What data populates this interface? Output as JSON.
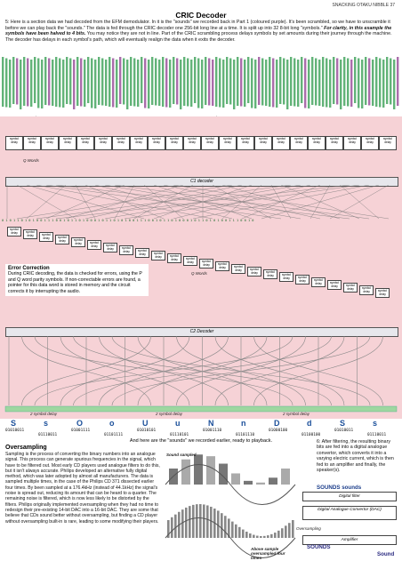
{
  "header": {
    "magazine": "SNACKING OTAKU NIBBLE 37",
    "title": "CRIC Decoder"
  },
  "intro": {
    "text": "5: Here is a section data we had decoded from the EFM demodulator. In it is the \"sounds\" we recorded back in Part 1 (coloured purple). It's been scrambled, so we have to unscramble it before we can play back the \"sounds.\" The data is fed through the CRIC decoder one 256-bit long line at a time. It is split up into 32 8-bit long \"symbols.\"",
    "emphasis": "For clarity, in this example the symbols have been halved to 4 bits.",
    "text_end": "You may notice they are not in line. Part of the CRIC scrambling process delays symbols by set amounts during their journey through the machine. The decoder has delays in each symbol's path, which will eventually realign the data when it exits the decoder."
  },
  "labels": {
    "p_words": "P Words",
    "q_words": "Q Words",
    "inverted": "(inverted)",
    "q_words_short": "Q Words",
    "c1_decoder": "C1 decoder",
    "c2_decoder": "C2 Decoder",
    "two_symbol_delay": "2 symbol delay",
    "delay_box": "symbol delay"
  },
  "bits": {
    "row_top": "0 1 0 1 0 1 0 1 0 1 0 1 0 1 0 1 0 1 0 1 0 1 0 1 0 1 0 1 0 1 0 1 0 1 0 1 0 1 0 1 0 1 0 1 0 1 0 1 0 1 0 1 0 1 0 1 0 1 0 1 0 1 0 1 0 1 0 1 0 1 0 1 0 1 0 1 0 1 0 1 0 1 0 1 0 1 0 1 0 1 0 1 0 1 0 1 0 1 0 1 0 1 0 1 0 1 0 1 0 1 0 1 0 1 0 1 0 1",
    "row_mid": "0 1 0 1 1 0 1 0 1 0 0 1 1 1 0 0 1 0 1 1 0 1 0 0 0 1 0 1 1 0 1 0 1 0 0 1 1 1 0 0 1 0 1 1 0 1 0 0 0 1 0 1 1 0 1 0 1 0 0 1 1 1 0 0 1 0"
  },
  "error_box": {
    "title": "Error Correction",
    "text": "During CRIC decoding, the data is checked for errors, using the P and Q word parity symbols. If non-correctable errors are found, a pointer for this data word is stored in memory and the circuit corrects it by interrupting the audio."
  },
  "symbols": [
    {
      "letter": "S",
      "bits": "01010011"
    },
    {
      "letter": "s",
      "bits": "01110011"
    },
    {
      "letter": "O",
      "bits": "01001111"
    },
    {
      "letter": "o",
      "bits": "01101111"
    },
    {
      "letter": "U",
      "bits": "01010101"
    },
    {
      "letter": "u",
      "bits": "01110101"
    },
    {
      "letter": "N",
      "bits": "01001110"
    },
    {
      "letter": "n",
      "bits": "01101110"
    },
    {
      "letter": "D",
      "bits": "01000100"
    },
    {
      "letter": "d",
      "bits": "01100100"
    },
    {
      "letter": "S",
      "bits": "01010011"
    },
    {
      "letter": "s",
      "bits": "01110011"
    }
  ],
  "caption": "And here are the \"sounds\" we recorded earlier, ready to playback.",
  "oversampling": {
    "title": "Oversampling",
    "text": "Sampling is the process of converting the binary numbers into an analogue signal. This process can generate spurious frequencies in the signal, which have to be filtered out. Most early CD players used analogue filters to do this, but it isn't always accurate. Philips developed an alternative fully digital method, which was later adopted by almost all manufacturers. The data is sampled multiple times, in the case of the Philips CD 371 dissected earlier four times. By been sampled at a 176.4kHz (instead of 44.1kHz) the signal's noise is spread out, reducing its amount that can be heard to a quarter. The remaining noise is filtered, which is now less likely to be distorted by the filters. Philips originally implemented oversampling when they had no time to redesign their pre-existing 14-bit DAC into a 16-bit DAC. They are some that believe that CDs sound better without oversampling, but finding a CD player without oversampling built-in is rare, leading to some modifying their players."
  },
  "diagram": {
    "sound_sampled": "Sound sampled",
    "above_sample": "Above sample oversampled four times"
  },
  "right_text": "6: After filtering, the resulting binary bits are fed into a digital analogue convertor, which converts it into a varying electric current, which is then fed to an amplifier and finally, the speaker(s).",
  "devices": {
    "sounds": "SOUNDS sounds",
    "digital_filter": "Digital filter",
    "dac": "Digital Analogue Convertor (DAC)",
    "oversampling": "Oversampling",
    "amplifier": "Amplifier",
    "sounds_caps": "SOUNDS",
    "sound_right": "Sound"
  },
  "colors": {
    "green": "#2e9a4b",
    "purple": "#8e3c8f",
    "pink_bg": "#f6d2d6",
    "decoder_bar": "#e7e7ec",
    "symbol_letter": "#1b4f9a"
  }
}
